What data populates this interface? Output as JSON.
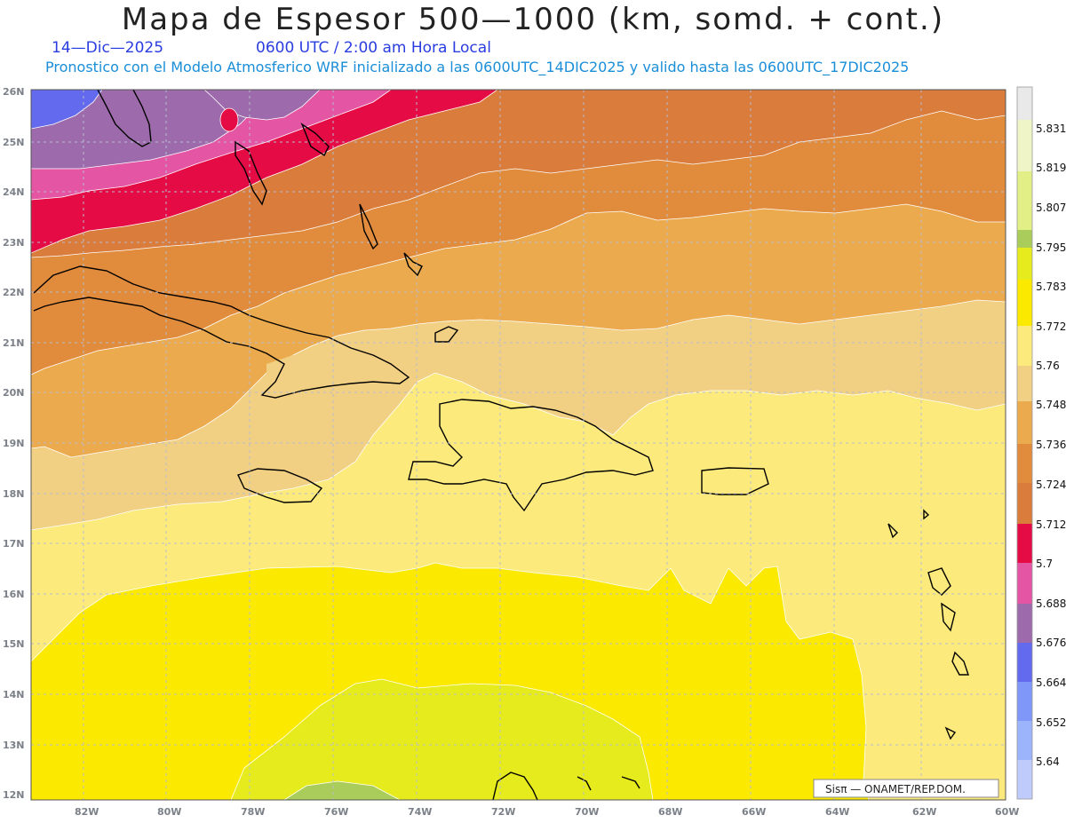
{
  "header": {
    "title": "Mapa de Espesor 500—1000 (km, somd. + cont.)",
    "date": "14—Dic—2025",
    "time": "0600 UTC / 2:00 am Hora Local",
    "subtitle": "Pronostico con el Modelo Atmosferico WRF inicializado a las 0600UTC_14DIC2025 y valido hasta las  0600UTC_17DIC2025"
  },
  "map": {
    "lat_labels": [
      "26N",
      "25N",
      "24N",
      "23N",
      "22N",
      "21N",
      "20N",
      "19N",
      "18N",
      "17N",
      "16N",
      "15N",
      "14N",
      "13N",
      "12N"
    ],
    "lon_labels": [
      "82W",
      "80W",
      "78W",
      "76W",
      "74W",
      "72W",
      "70W",
      "68W",
      "66W",
      "64W",
      "62W",
      "60W"
    ],
    "credit": "Sisπ — ONAMET/REP.DOM."
  },
  "colorbar": {
    "labels": [
      "5.831",
      "5.819",
      "5.807",
      "5.795",
      "5.783",
      "5.772",
      "5.76",
      "5.748",
      "5.736",
      "5.724",
      "5.712",
      "5.7",
      "5.688",
      "5.676",
      "5.664",
      "5.652",
      "5.64"
    ],
    "colors": [
      "#e9e9e9",
      "#f0f5c8",
      "#e1ef86",
      "#a9cc5a",
      "#e6eb1d",
      "#fbe900",
      "#fcea7c",
      "#f1cf83",
      "#ebaa4d",
      "#e18b3c",
      "#d97c3c",
      "#e50c45",
      "#e455a4",
      "#9d6bab",
      "#636aee",
      "#7f97f8",
      "#9cb4fb",
      "#bfccfb"
    ]
  }
}
